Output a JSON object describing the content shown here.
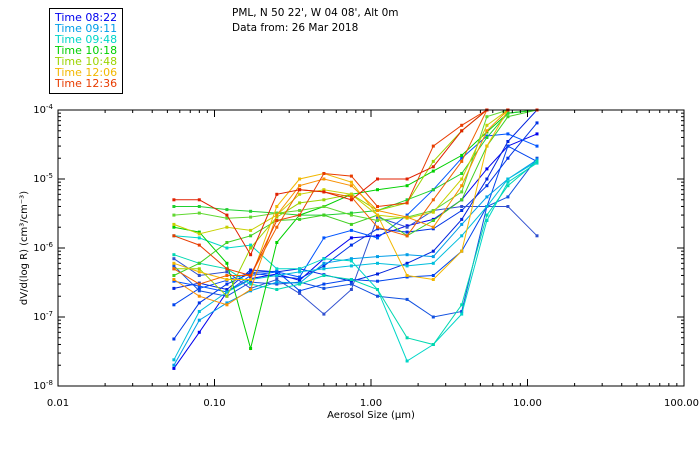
{
  "header": {
    "location": "PML, N 50 22', W 04 08', Alt 0m",
    "date": "Data from: 26 Mar 2018"
  },
  "legend": [
    {
      "label": "Time 08:22",
      "color": "#0000ee"
    },
    {
      "label": "Time 09:11",
      "color": "#009ee8"
    },
    {
      "label": "Time 09:48",
      "color": "#00d6c8"
    },
    {
      "label": "Time 10:18",
      "color": "#00d000"
    },
    {
      "label": "Time 10:48",
      "color": "#9bd400"
    },
    {
      "label": "Time 12:06",
      "color": "#f2b800"
    },
    {
      "label": "Time 12:36",
      "color": "#e83c00"
    }
  ],
  "chart_data": {
    "type": "line",
    "xscale": "log",
    "yscale": "log",
    "xlim": [
      0.01,
      100
    ],
    "ylim": [
      1e-08,
      0.0001
    ],
    "xlabel": "Aerosol Size (μm)",
    "ylabel": "dV/d(log R) (cm³/cm⁻³)",
    "x_ticks": [
      {
        "value": 0.01,
        "label": "0.01"
      },
      {
        "value": 0.1,
        "label": "0.10"
      },
      {
        "value": 1,
        "label": "1.00"
      },
      {
        "value": 10,
        "label": "10.00"
      },
      {
        "value": 100,
        "label": "100.00"
      }
    ],
    "y_ticks": [
      {
        "value": 1e-08,
        "mantissa": "10",
        "exponent": "-8"
      },
      {
        "value": 1e-07,
        "mantissa": "10",
        "exponent": "-7"
      },
      {
        "value": 1e-06,
        "mantissa": "10",
        "exponent": "-6"
      },
      {
        "value": 1e-05,
        "mantissa": "10",
        "exponent": "-5"
      },
      {
        "value": 0.0001,
        "mantissa": "10",
        "exponent": "-4"
      }
    ],
    "x": [
      0.055,
      0.08,
      0.12,
      0.17,
      0.25,
      0.35,
      0.5,
      0.75,
      1.1,
      1.7,
      2.5,
      3.8,
      5.5,
      7.5,
      11.5
    ],
    "series": [
      {
        "color": "#0000ee",
        "values": [
          1.8e-08,
          6e-08,
          2.3e-07,
          3.6e-07,
          4.2e-07,
          3.4e-07,
          7e-07,
          1.4e-06,
          1.5e-06,
          2.1e-06,
          2.6e-06,
          5e-06,
          1.4e-05,
          3e-05,
          4.5e-05
        ]
      },
      {
        "color": "#0033e6",
        "values": [
          4.8e-08,
          1.6e-07,
          3e-07,
          4.3e-07,
          3.9e-07,
          3.6e-07,
          5.5e-07,
          1.1e-06,
          1.9e-06,
          1.7e-06,
          1.9e-06,
          3.5e-06,
          8e-06,
          2e-05,
          6.5e-05
        ]
      },
      {
        "color": "#0022dd",
        "values": [
          2.6e-07,
          3.1e-07,
          2.5e-07,
          4.8e-07,
          4.5e-07,
          5e-07,
          4.1e-07,
          3.3e-07,
          4.2e-07,
          6e-07,
          9e-07,
          2.6e-06,
          1e-05,
          3.5e-05,
          0.0001
        ]
      },
      {
        "color": "#0044ee",
        "values": [
          1.5e-07,
          2.6e-07,
          3.4e-07,
          4.4e-07,
          4.6e-07,
          2.4e-07,
          3e-07,
          3.5e-07,
          3.3e-07,
          3.8e-07,
          4e-07,
          9e-07,
          4e-06,
          3e-05,
          1.8e-05
        ]
      },
      {
        "color": "#0055ff",
        "values": [
          3.3e-07,
          2.8e-07,
          2.3e-07,
          4e-07,
          4.5e-07,
          3.8e-07,
          1.4e-06,
          1.8e-06,
          1.4e-06,
          3e-06,
          7e-06,
          2e-05,
          4.2e-05,
          4.5e-05,
          3e-05
        ]
      },
      {
        "color": "#1050e0",
        "values": [
          5.5e-07,
          2.4e-07,
          2e-07,
          3.2e-07,
          3e-07,
          3.2e-07,
          2.6e-07,
          3e-07,
          2e-07,
          1.8e-07,
          1e-07,
          1.2e-07,
          4e-06,
          5.5e-06,
          2e-05
        ]
      },
      {
        "color": "#3050d0",
        "values": [
          7e-07,
          4e-07,
          4.5e-07,
          2.6e-07,
          3.5e-07,
          2.2e-07,
          1.1e-07,
          2.5e-07,
          2.8e-06,
          2e-06,
          3.5e-06,
          4e-06,
          4e-06,
          4e-06,
          1.5e-06
        ]
      },
      {
        "color": "#009ee8",
        "values": [
          2e-08,
          9e-08,
          1.6e-07,
          2.4e-07,
          3.2e-07,
          3.1e-07,
          6e-07,
          7e-07,
          7.5e-07,
          8e-07,
          7.5e-07,
          2.2e-06,
          5.5e-06,
          1e-05,
          1.9e-05
        ]
      },
      {
        "color": "#00bedc",
        "values": [
          2.4e-08,
          1.2e-07,
          2.3e-07,
          3.5e-07,
          4e-07,
          4.5e-07,
          5e-07,
          5.5e-07,
          6e-07,
          5.5e-07,
          6e-07,
          1.5e-06,
          4e-06,
          1e-05,
          1.8e-05
        ]
      },
      {
        "color": "#00d6c8",
        "values": [
          1.5e-06,
          1.4e-06,
          1e-06,
          1.1e-06,
          5e-07,
          5e-07,
          7e-07,
          6.5e-07,
          2.5e-07,
          2.3e-08,
          4e-08,
          1.1e-07,
          2.5e-06,
          9e-06,
          1.7e-05
        ]
      },
      {
        "color": "#00d8b0",
        "values": [
          8e-07,
          6e-07,
          5e-07,
          3e-07,
          2.5e-07,
          3e-07,
          4e-07,
          3.5e-07,
          2.5e-07,
          5e-08,
          4e-08,
          1.5e-07,
          3e-06,
          8e-06,
          1.8e-05
        ]
      },
      {
        "color": "#00d000",
        "values": [
          2e-06,
          1.7e-06,
          6e-07,
          3.5e-08,
          1.2e-06,
          3e-06,
          4e-06,
          6e-06,
          7e-06,
          8e-06,
          1.3e-05,
          2.2e-05,
          4.8e-05,
          9e-05,
          0.0001
        ]
      },
      {
        "color": "#20d030",
        "values": [
          4e-06,
          4e-06,
          3.6e-06,
          3.4e-06,
          3.2e-06,
          3e-06,
          3e-06,
          3.2e-06,
          3.5e-06,
          5e-06,
          7e-06,
          1.2e-05,
          4e-05,
          9e-05,
          0.0001
        ]
      },
      {
        "color": "#40d020",
        "values": [
          4e-07,
          6e-07,
          1.2e-06,
          1.5e-06,
          2.5e-06,
          2.6e-06,
          3e-06,
          2.2e-06,
          3e-06,
          1.5e-06,
          2.5e-06,
          5e-06,
          3e-05,
          8e-05,
          0.0001
        ]
      },
      {
        "color": "#60d830",
        "values": [
          3e-06,
          3.2e-06,
          2.7e-06,
          2.8e-06,
          3.2e-06,
          3.5e-06,
          4e-06,
          3e-06,
          2.5e-06,
          2.8e-06,
          3.5e-06,
          6.5e-06,
          8e-05,
          0.0001,
          0.0001
        ]
      },
      {
        "color": "#9bd400",
        "values": [
          5e-07,
          5e-07,
          2e-07,
          1e-06,
          2.8e-06,
          4.5e-06,
          5e-06,
          6e-06,
          3.5e-06,
          4.5e-06,
          1.8e-05,
          5e-05,
          0.0001,
          0.0001,
          0.0001
        ]
      },
      {
        "color": "#c8d000",
        "values": [
          2.2e-06,
          1.6e-06,
          2e-06,
          1.8e-06,
          3e-06,
          6e-06,
          7e-06,
          6e-06,
          3e-06,
          2.7e-06,
          3.3e-06,
          1e-05,
          6e-05,
          0.0001,
          0.0001
        ]
      },
      {
        "color": "#f2b800",
        "values": [
          6e-07,
          4.5e-07,
          3.5e-07,
          3.5e-07,
          4e-06,
          1e-05,
          1.2e-05,
          9e-06,
          3e-06,
          4e-07,
          3.5e-07,
          9e-07,
          3e-05,
          0.0001,
          0.0001
        ]
      },
      {
        "color": "#f89000",
        "values": [
          3.5e-07,
          2e-07,
          1.5e-07,
          2.5e-07,
          3e-06,
          8e-06,
          1e-05,
          8e-06,
          3.5e-06,
          2.8e-06,
          2e-06,
          8e-06,
          5e-05,
          0.0001,
          0.0001
        ]
      },
      {
        "color": "#f06000",
        "values": [
          5e-07,
          3e-07,
          4e-07,
          4e-07,
          2e-06,
          7e-06,
          6.5e-06,
          5.5e-06,
          2e-06,
          1.5e-06,
          5e-06,
          1.8e-05,
          0.0001,
          0.0001,
          0.0001
        ]
      },
      {
        "color": "#e83c00",
        "values": [
          1.5e-06,
          1.1e-06,
          5e-07,
          4e-07,
          2.5e-06,
          3e-06,
          1.2e-05,
          1.1e-05,
          4e-06,
          4.5e-06,
          3e-05,
          6e-05,
          0.0001,
          0.0001,
          0.0001
        ]
      },
      {
        "color": "#e02000",
        "values": [
          5e-06,
          5e-06,
          3e-06,
          8e-07,
          6e-06,
          7e-06,
          6.5e-06,
          5e-06,
          1e-05,
          1e-05,
          1.5e-05,
          5e-05,
          0.0001,
          0.0001,
          0.0001
        ]
      }
    ]
  }
}
